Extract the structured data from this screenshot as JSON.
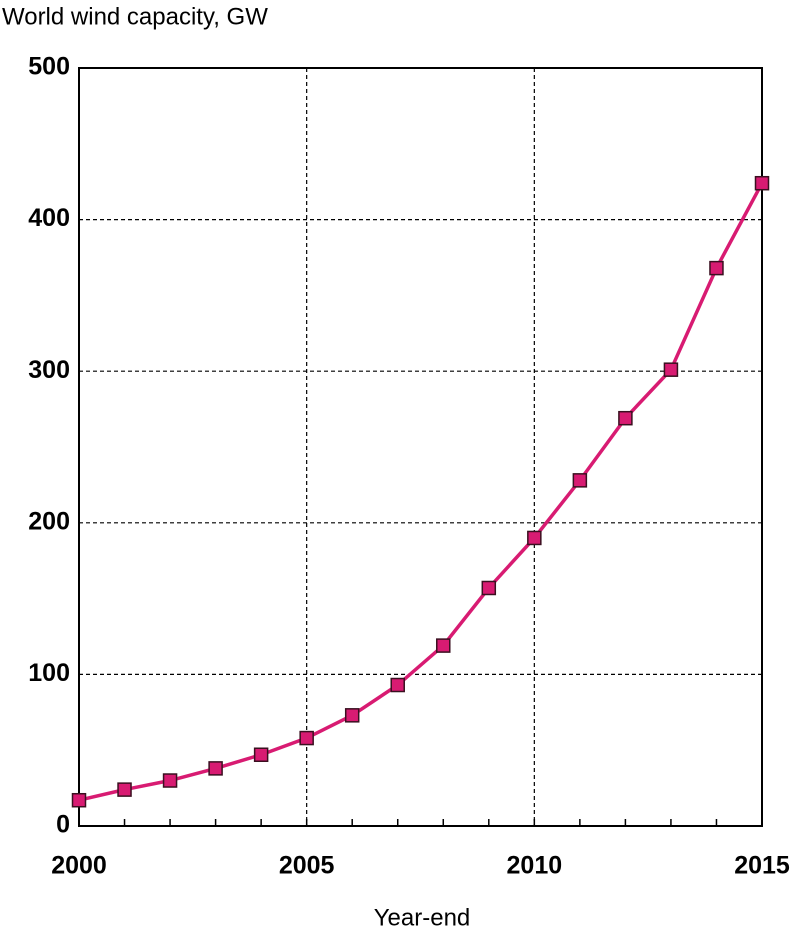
{
  "chart_data": {
    "type": "line",
    "title": "World wind capacity, GW",
    "x_label": "Year-end",
    "x": [
      2000,
      2001,
      2002,
      2003,
      2004,
      2005,
      2006,
      2007,
      2008,
      2009,
      2010,
      2011,
      2012,
      2013,
      2014,
      2015
    ],
    "series": [
      {
        "name": "World wind capacity",
        "color": "#d81b72",
        "values": [
          17,
          24,
          30,
          38,
          47,
          58,
          73,
          93,
          119,
          157,
          190,
          228,
          269,
          301,
          368,
          424
        ]
      }
    ],
    "xlim": [
      2000,
      2015
    ],
    "xticks": [
      2000,
      2005,
      2010,
      2015
    ],
    "ylim": [
      0,
      500
    ],
    "yticks": [
      0,
      100,
      200,
      300,
      400,
      500
    ],
    "grid": true
  }
}
